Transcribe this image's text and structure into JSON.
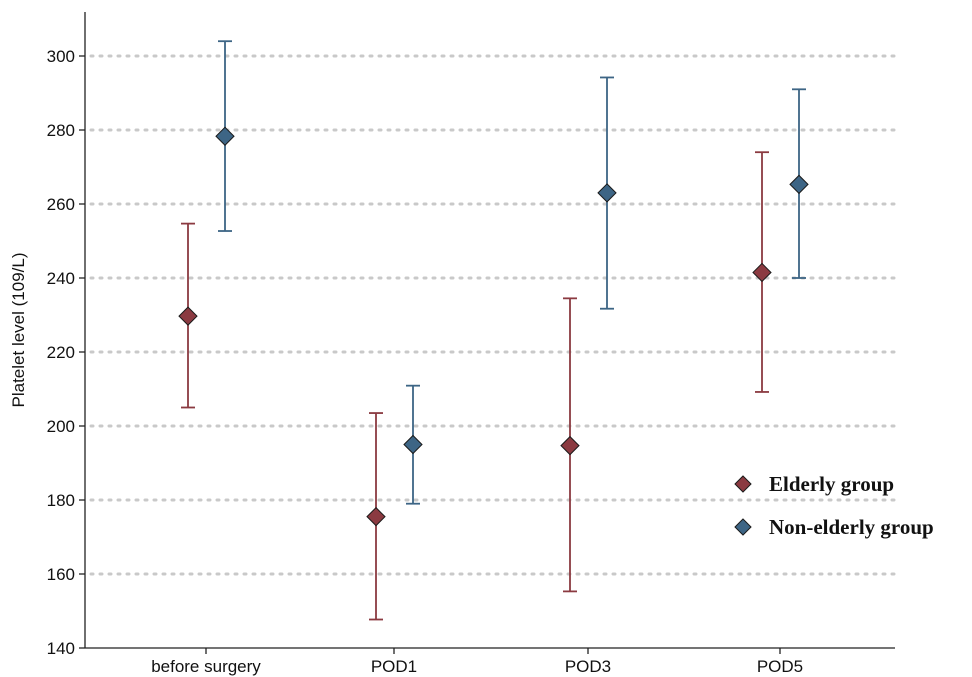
{
  "chart_data": {
    "type": "scatter",
    "subtype": "error-bar",
    "ylabel": "Platelet level (109/L)",
    "xlabel": "",
    "ylim": [
      140,
      305
    ],
    "yticks": [
      140,
      160,
      180,
      200,
      220,
      240,
      260,
      280,
      300
    ],
    "grid": "horizontal dotted",
    "legend_position": "right",
    "categories": [
      "before surgery",
      "POD1",
      "POD3",
      "POD5"
    ],
    "series": [
      {
        "name": "Elderly group",
        "color": "#8b3a41",
        "marker": "diamond",
        "values": [
          229.7,
          175.5,
          194.7,
          241.5
        ],
        "lower": [
          205.0,
          147.7,
          155.3,
          209.2
        ],
        "upper": [
          254.7,
          203.5,
          234.5,
          274.0
        ]
      },
      {
        "name": "Non-elderly group",
        "color": "#3d6585",
        "marker": "diamond",
        "values": [
          278.3,
          195.0,
          263.0,
          265.3
        ],
        "lower": [
          252.7,
          179.0,
          231.7,
          240.0
        ],
        "upper": [
          304.0,
          210.9,
          294.2,
          291.0
        ]
      }
    ]
  }
}
